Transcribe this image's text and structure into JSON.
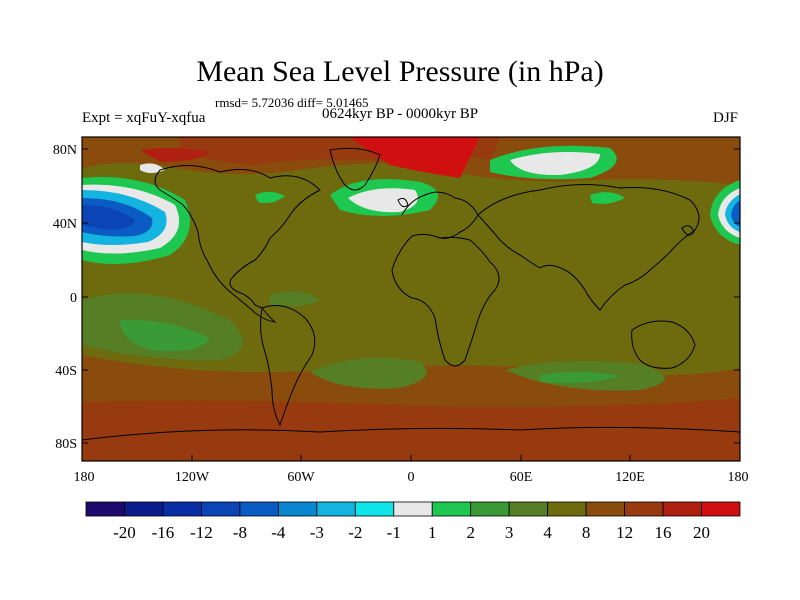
{
  "title": "Mean Sea Level Pressure (in hPa)",
  "stats": "rmsd= 5.72036 diff= 5.01465",
  "subtitle": "0624kyr BP - 0000kyr BP",
  "expt": "Expt = xqFuY-xqfua",
  "season": "DJF",
  "lat_ticks": [
    "80N",
    "40N",
    "0",
    "40S",
    "80S"
  ],
  "lon_ticks": [
    "180",
    "120W",
    "60W",
    "0",
    "60E",
    "120E",
    "180"
  ],
  "colorbar": {
    "labels": [
      "-20",
      "-16",
      "-12",
      "-8",
      "-4",
      "-3",
      "-2",
      "-1",
      "1",
      "2",
      "3",
      "4",
      "8",
      "12",
      "16",
      "20"
    ],
    "colors": [
      "#1e0a6e",
      "#0c1c8c",
      "#0a2ea6",
      "#0b44b4",
      "#0a5cc2",
      "#0b86d0",
      "#14b4e0",
      "#10e6ea",
      "#e8e8e8",
      "#1ec850",
      "#3a9a36",
      "#567e24",
      "#6e6a0e",
      "#8a4c0c",
      "#983a10",
      "#b02010",
      "#d01010"
    ]
  }
}
